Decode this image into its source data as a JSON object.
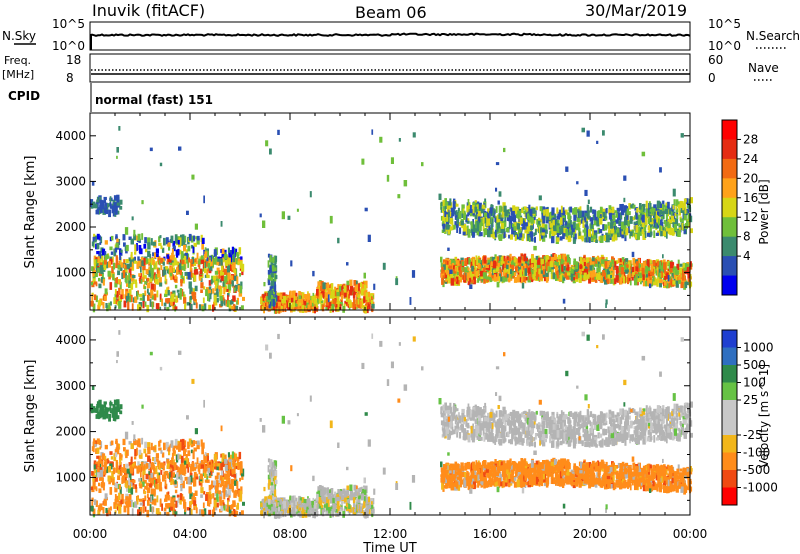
{
  "header": {
    "station": "Inuvik (fitACF)",
    "beam": "Beam 06",
    "date": "30/Mar/2019"
  },
  "status_panels": {
    "nsky_label": "N.Sky",
    "nsky_ticks": [
      "10^5",
      "10^0"
    ],
    "nsearch_label": "N.Search",
    "nsearch_ticks": [
      "10^5",
      "10^0"
    ],
    "freq_label_1": "Freq.",
    "freq_label_2": "[MHz]",
    "freq_ticks": [
      "18",
      "8"
    ],
    "nave_label": "Nave",
    "nave_ticks": [
      "60",
      "0"
    ],
    "cpid_label": "CPID",
    "cpid_value": "normal (fast) 151"
  },
  "colors": {
    "power_scale": [
      "#0000ee",
      "#2a4fb3",
      "#3b8a6e",
      "#6fbf3a",
      "#d7d616",
      "#ffa21a",
      "#f26a12",
      "#e52c12",
      "#ff0000"
    ],
    "velocity_scale": [
      "#1f3fd0",
      "#2f6fc0",
      "#2f8a4a",
      "#66c244",
      "#c8c8c8",
      "#c8c8c8",
      "#f2b61a",
      "#ff8c1a",
      "#f04a12",
      "#ff0000"
    ],
    "ground_scatter": "#b4b4b4"
  },
  "chart_data": [
    {
      "type": "heatmap",
      "title": "",
      "xlabel": "Time UT",
      "ylabel": "Slant Range [km]",
      "xlim": [
        "00:00",
        "24:00"
      ],
      "ylim": [
        180,
        4500
      ],
      "x_tick_labels": [
        "00:00",
        "04:00",
        "08:00",
        "12:00",
        "16:00",
        "20:00",
        "00:00"
      ],
      "y_tick_labels": [
        "1000",
        "2000",
        "3000",
        "4000"
      ],
      "colorbar": {
        "label": "Power [dB]",
        "range": [
          0,
          32
        ],
        "tick_labels": [
          "4",
          "8",
          "12",
          "16",
          "20",
          "24",
          "28"
        ]
      },
      "regions": [
        {
          "t_start": 0.0,
          "t_end": 6.1,
          "r_low": 180,
          "r_high": 1800,
          "mean_power_db": 18
        },
        {
          "t_start": 0.3,
          "t_end": 1.0,
          "r_low": 2300,
          "r_high": 2600,
          "mean_power_db": 6
        },
        {
          "t_start": 6.8,
          "t_end": 11.3,
          "r_low": 180,
          "r_high": 800,
          "mean_power_db": 24
        },
        {
          "t_start": 14.0,
          "t_end": 24.0,
          "r_low": 600,
          "r_high": 1400,
          "mean_power_db": 22
        },
        {
          "t_start": 14.0,
          "t_end": 24.0,
          "r_low": 1600,
          "r_high": 2650,
          "mean_power_db": 10
        }
      ]
    },
    {
      "type": "heatmap",
      "title": "",
      "xlabel": "Time UT",
      "ylabel": "Slant Range [km]",
      "xlim": [
        "00:00",
        "24:00"
      ],
      "ylim": [
        180,
        4500
      ],
      "x_tick_labels": [
        "00:00",
        "04:00",
        "08:00",
        "12:00",
        "16:00",
        "20:00",
        "00:00"
      ],
      "y_tick_labels": [
        "1000",
        "2000",
        "3000",
        "4000"
      ],
      "colorbar": {
        "label": "Velocity [m s^-1]",
        "tick_labels": [
          "1000",
          "500",
          "100",
          "25",
          "-25",
          "-100",
          "-500",
          "-1000"
        ]
      },
      "regions": [
        {
          "t_start": 0.0,
          "t_end": 6.1,
          "r_low": 180,
          "r_high": 1800,
          "mean_velocity": -200
        },
        {
          "t_start": 6.8,
          "t_end": 11.3,
          "r_low": 180,
          "r_high": 800,
          "mean_velocity": 0
        },
        {
          "t_start": 14.0,
          "t_end": 24.0,
          "r_low": 600,
          "r_high": 1400,
          "mean_velocity": -150
        },
        {
          "t_start": 14.0,
          "t_end": 24.0,
          "r_low": 1600,
          "r_high": 2650,
          "mean_velocity": 0
        }
      ]
    }
  ]
}
